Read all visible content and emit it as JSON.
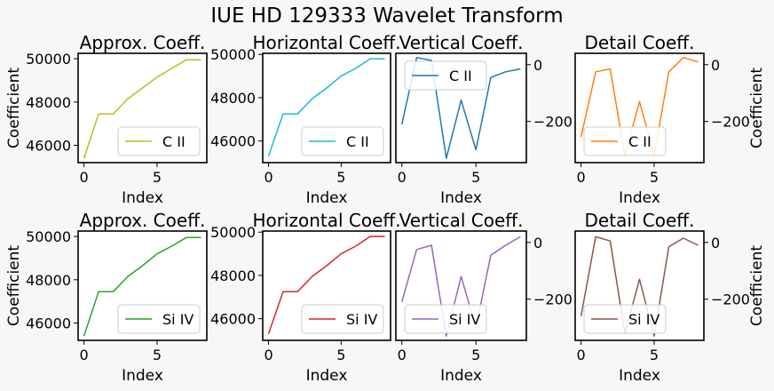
{
  "figure_title": "IUE HD 129333 Wavelet Transform",
  "chart_data": [
    {
      "type": "line",
      "title": "Approx. Coeff.",
      "xlabel": "Index",
      "ylabel": "Coefficient",
      "ylabel_side": "left",
      "ytick_side": "left",
      "series": [
        {
          "name": "C II",
          "color": "#bcbd22",
          "x": [
            0,
            1,
            2,
            3,
            4,
            5,
            6,
            7,
            8
          ],
          "values": [
            45400,
            47450,
            47450,
            48150,
            48650,
            49150,
            49550,
            49950,
            49950
          ]
        }
      ],
      "xlim": [
        -0.4,
        8.4
      ],
      "ylim": [
        45200,
        50250
      ],
      "xticks": [
        0,
        5
      ],
      "yticks": [
        46000,
        48000,
        50000
      ],
      "legend": "lower right"
    },
    {
      "type": "line",
      "title": "Horizontal Coeff.",
      "xlabel": "Index",
      "ylabel": "",
      "ylabel_side": "none",
      "ytick_side": "left",
      "series": [
        {
          "name": "C II",
          "color": "#17becf",
          "x": [
            0,
            1,
            2,
            3,
            4,
            5,
            6,
            7,
            8
          ],
          "values": [
            45300,
            47250,
            47250,
            47950,
            48450,
            49000,
            49350,
            49800,
            49800
          ]
        }
      ],
      "xlim": [
        -0.4,
        8.4
      ],
      "ylim": [
        45000,
        50050
      ],
      "xticks": [
        0,
        5
      ],
      "yticks": [
        46000,
        48000,
        50000
      ],
      "legend": "lower right"
    },
    {
      "type": "line",
      "title": "Vertical Coeff.",
      "xlabel": "Index",
      "ylabel": "",
      "ylabel_side": "none",
      "ytick_side": "right",
      "series": [
        {
          "name": "C II",
          "color": "#1f77b4",
          "x": [
            0,
            1,
            2,
            3,
            4,
            5,
            6,
            7,
            8
          ],
          "values": [
            -210,
            25,
            15,
            -330,
            -125,
            -300,
            -45,
            -25,
            -15
          ]
        }
      ],
      "xlim": [
        -0.4,
        8.4
      ],
      "ylim": [
        -345,
        40
      ],
      "xticks": [
        0,
        5
      ],
      "yticks": [
        -200,
        0
      ],
      "legend": "upper left"
    },
    {
      "type": "line",
      "title": "Detail Coeff.",
      "xlabel": "Index",
      "ylabel": "Coefficient",
      "ylabel_side": "right",
      "ytick_side": "right",
      "series": [
        {
          "name": "C II",
          "color": "#ff7f0e",
          "x": [
            0,
            1,
            2,
            3,
            4,
            5,
            6,
            7,
            8
          ],
          "values": [
            -255,
            -25,
            -15,
            -320,
            -130,
            -320,
            -25,
            25,
            10
          ]
        }
      ],
      "xlim": [
        -0.4,
        8.4
      ],
      "ylim": [
        -345,
        40
      ],
      "xticks": [
        0,
        5
      ],
      "yticks": [
        -200,
        0
      ],
      "legend": "lower left"
    },
    {
      "type": "line",
      "title": "Approx. Coeff.",
      "xlabel": "Index",
      "ylabel": "Coefficient",
      "ylabel_side": "left",
      "ytick_side": "left",
      "series": [
        {
          "name": "Si IV",
          "color": "#2ca02c",
          "x": [
            0,
            1,
            2,
            3,
            4,
            5,
            6,
            7,
            8
          ],
          "values": [
            45400,
            47450,
            47450,
            48150,
            48650,
            49200,
            49550,
            49950,
            49950
          ]
        }
      ],
      "xlim": [
        -0.4,
        8.4
      ],
      "ylim": [
        45200,
        50250
      ],
      "xticks": [
        0,
        5
      ],
      "yticks": [
        46000,
        48000,
        50000
      ],
      "legend": "lower right"
    },
    {
      "type": "line",
      "title": "Horizontal Coeff.",
      "xlabel": "Index",
      "ylabel": "",
      "ylabel_side": "none",
      "ytick_side": "left",
      "series": [
        {
          "name": "Si IV",
          "color": "#d62728",
          "x": [
            0,
            1,
            2,
            3,
            4,
            5,
            6,
            7,
            8
          ],
          "values": [
            45300,
            47250,
            47250,
            47950,
            48450,
            49000,
            49350,
            49800,
            49800
          ]
        }
      ],
      "xlim": [
        -0.4,
        8.4
      ],
      "ylim": [
        45000,
        50050
      ],
      "xticks": [
        0,
        5
      ],
      "yticks": [
        46000,
        48000,
        50000
      ],
      "legend": "lower right"
    },
    {
      "type": "line",
      "title": "Vertical Coeff.",
      "xlabel": "Index",
      "ylabel": "",
      "ylabel_side": "none",
      "ytick_side": "right",
      "series": [
        {
          "name": "Si IV",
          "color": "#9467bd",
          "x": [
            0,
            1,
            2,
            3,
            4,
            5,
            6,
            7,
            8
          ],
          "values": [
            -210,
            -25,
            -10,
            -330,
            -120,
            -300,
            -45,
            -10,
            20
          ]
        }
      ],
      "xlim": [
        -0.4,
        8.4
      ],
      "ylim": [
        -345,
        40
      ],
      "xticks": [
        0,
        5
      ],
      "yticks": [
        -200,
        0
      ],
      "legend": "lower left"
    },
    {
      "type": "line",
      "title": "Detail Coeff.",
      "xlabel": "Index",
      "ylabel": "Coefficient",
      "ylabel_side": "right",
      "ytick_side": "right",
      "series": [
        {
          "name": "Si IV",
          "color": "#8c564b",
          "x": [
            0,
            1,
            2,
            3,
            4,
            5,
            6,
            7,
            8
          ],
          "values": [
            -260,
            20,
            5,
            -320,
            -130,
            -330,
            -15,
            15,
            -10
          ]
        }
      ],
      "xlim": [
        -0.4,
        8.4
      ],
      "ylim": [
        -345,
        40
      ],
      "xticks": [
        0,
        5
      ],
      "yticks": [
        -200,
        0
      ],
      "legend": "lower left"
    }
  ]
}
